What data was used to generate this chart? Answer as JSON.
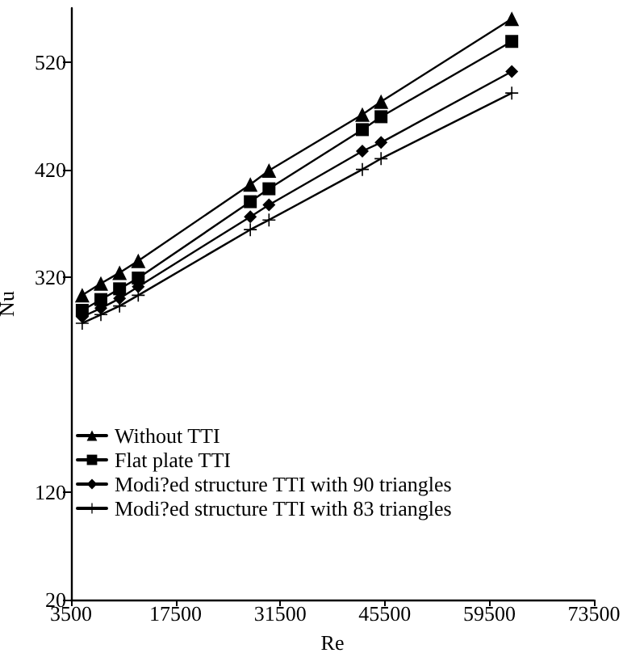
{
  "chart_data": {
    "type": "line",
    "xlabel": "Re",
    "ylabel": "Nu",
    "x": [
      5000,
      7500,
      10000,
      12500,
      27500,
      30000,
      42500,
      45000,
      62500
    ],
    "series": [
      {
        "name": "Without TTI",
        "color": "#000000",
        "marker": "triangle",
        "values": [
          303,
          314,
          324,
          335,
          406,
          419,
          471,
          483,
          560
        ]
      },
      {
        "name": "Flat plate TTI",
        "color": "#000000",
        "marker": "square",
        "values": [
          289,
          299,
          309,
          319,
          390,
          402,
          457,
          469,
          539
        ]
      },
      {
        "name": "Modi?ed structure TTI with 90 triangles",
        "color": "#000000",
        "marker": "diamond",
        "values": [
          283,
          291,
          300,
          311,
          376,
          387,
          437,
          445,
          511
        ]
      },
      {
        "name": "Modi?ed structure TTI with 83 triangles",
        "color": "#000000",
        "marker": "cross",
        "values": [
          277,
          285,
          293,
          303,
          364,
          373,
          420,
          430,
          491
        ]
      }
    ],
    "xlim": [
      3500,
      73500
    ],
    "xticks": [
      3500,
      17500,
      31500,
      45500,
      59500,
      73500
    ],
    "ylim": [
      20,
      570
    ],
    "yticks": [
      20,
      120,
      320,
      420,
      520
    ],
    "grid": false,
    "legend": "left",
    "line_style": "solid"
  }
}
